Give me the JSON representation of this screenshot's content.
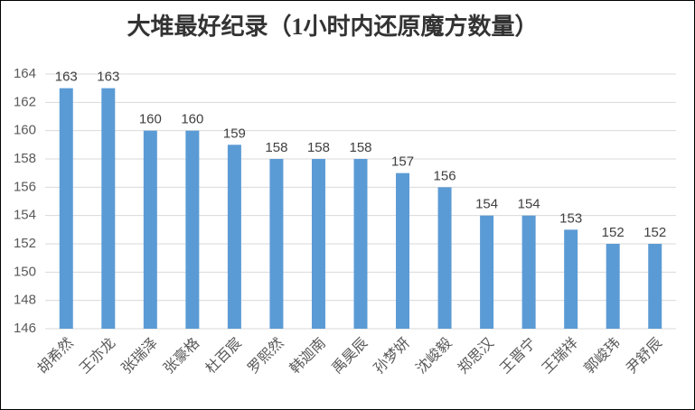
{
  "chart_data": {
    "type": "bar",
    "title": "大堆最好纪录（1小时内还原魔方数量）",
    "categories": [
      "胡希然",
      "王亦龙",
      "张瑞泽",
      "张豪格",
      "杜百宸",
      "罗熙然",
      "韩迦南",
      "禹昊辰",
      "孙梦妍",
      "沈峻毅",
      "郑思汉",
      "王晋宁",
      "王瑞祥",
      "郭峻玮",
      "尹舒辰"
    ],
    "values": [
      163,
      163,
      160,
      160,
      159,
      158,
      158,
      158,
      157,
      156,
      154,
      154,
      153,
      152,
      152
    ],
    "color": "#5b9bd5",
    "ylim": [
      146,
      164
    ],
    "yticks": [
      146,
      148,
      150,
      152,
      154,
      156,
      158,
      160,
      162,
      164
    ],
    "grid": true
  }
}
